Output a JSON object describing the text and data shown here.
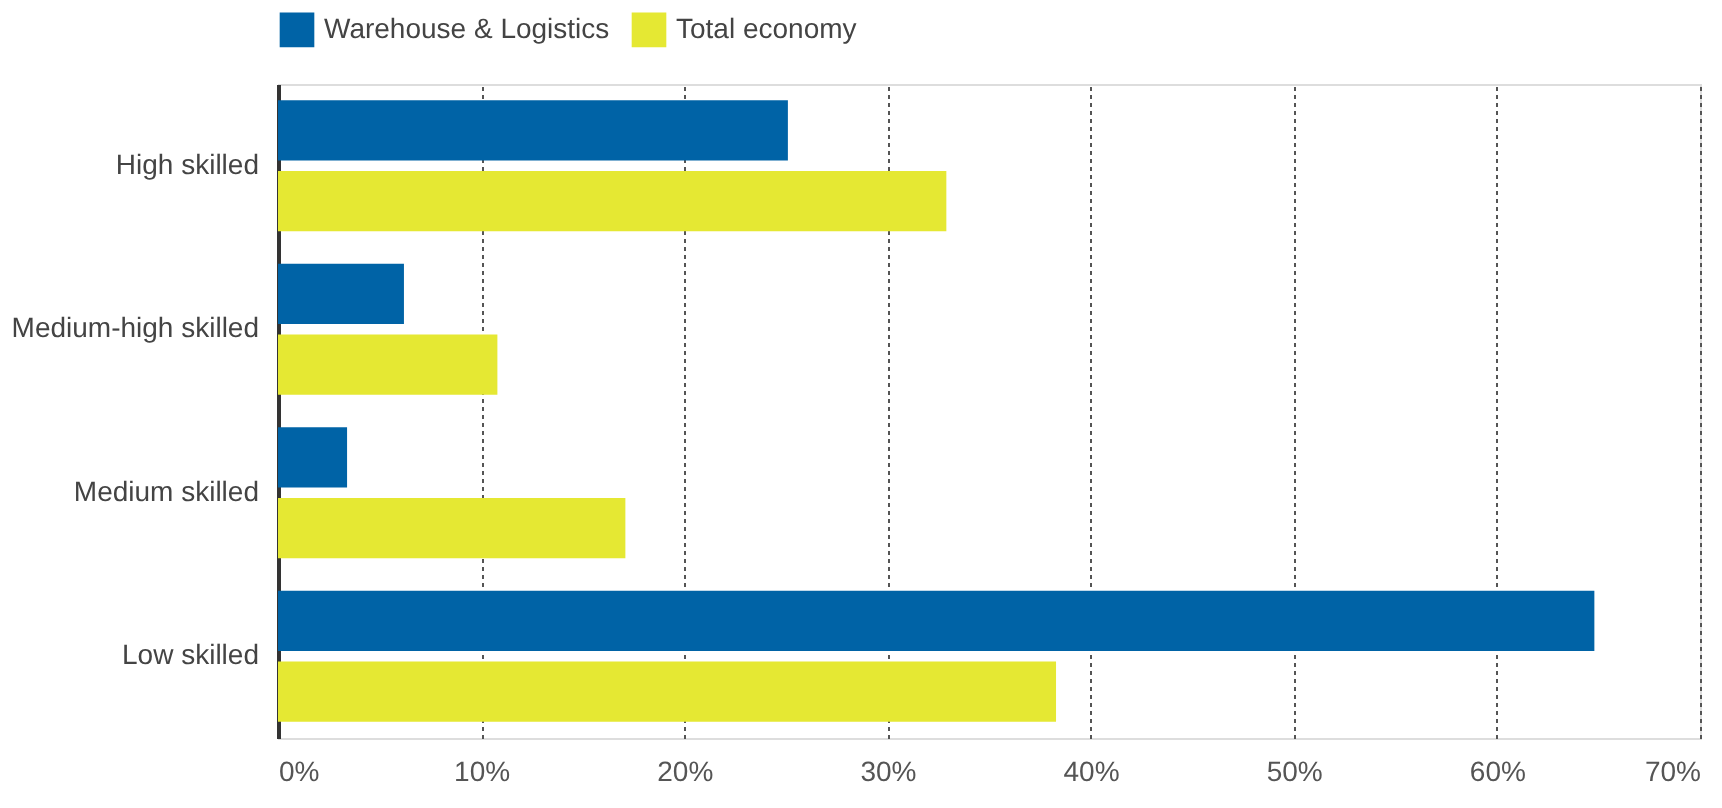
{
  "chart_data": {
    "type": "bar",
    "orientation": "horizontal",
    "categories": [
      "High skilled",
      "Medium-high skilled",
      "Medium skilled",
      "Low skilled"
    ],
    "series": [
      {
        "name": "Warehouse & Logistics",
        "color": "#0063a6",
        "values": [
          25.1,
          6.2,
          3.4,
          64.8
        ]
      },
      {
        "name": "Total economy",
        "color": "#e5e833",
        "values": [
          32.9,
          10.8,
          17.1,
          38.3
        ]
      }
    ],
    "xlim": [
      0,
      70
    ],
    "xticks": [
      {
        "value": 0,
        "label": "0%"
      },
      {
        "value": 10,
        "label": "10%"
      },
      {
        "value": 20,
        "label": "20%"
      },
      {
        "value": 30,
        "label": "30%"
      },
      {
        "value": 40,
        "label": "40%"
      },
      {
        "value": 50,
        "label": "50%"
      },
      {
        "value": 60,
        "label": "60%"
      },
      {
        "value": 70,
        "label": "70%"
      }
    ],
    "grid": "x",
    "legend": "top"
  }
}
